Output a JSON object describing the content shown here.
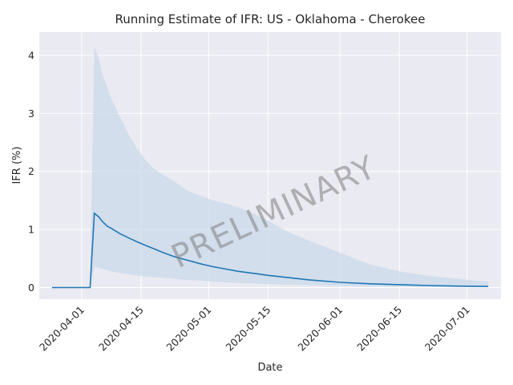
{
  "chart_data": {
    "type": "line",
    "title": "Running Estimate of IFR: US - Oklahoma - Cherokee",
    "xlabel": "Date",
    "ylabel": "IFR (%)",
    "watermark": "PRELIMINARY",
    "x_tick_labels": [
      "2020-04-01",
      "2020-04-15",
      "2020-05-01",
      "2020-05-15",
      "2020-06-01",
      "2020-06-15",
      "2020-07-01"
    ],
    "y_tick_labels": [
      "0",
      "1",
      "2",
      "3",
      "4"
    ],
    "y_ticks": [
      0,
      1,
      2,
      3,
      4
    ],
    "xlim": [
      "2020-03-22",
      "2020-07-09"
    ],
    "ylim": [
      -0.2,
      4.4
    ],
    "grid": true,
    "background": "#eaeaf2",
    "line_color": "#1f77b4",
    "band_color": "#c9d9ea",
    "series": [
      {
        "x": [
          "2020-03-25",
          "2020-04-03",
          "2020-04-04",
          "2020-04-05",
          "2020-04-06",
          "2020-04-07",
          "2020-04-08",
          "2020-04-10",
          "2020-04-12",
          "2020-04-14",
          "2020-04-16",
          "2020-04-18",
          "2020-04-20",
          "2020-04-23",
          "2020-04-26",
          "2020-04-29",
          "2020-05-02",
          "2020-05-05",
          "2020-05-08",
          "2020-05-12",
          "2020-05-15",
          "2020-05-20",
          "2020-05-25",
          "2020-06-01",
          "2020-06-08",
          "2020-06-15",
          "2020-06-22",
          "2020-06-29",
          "2020-07-06"
        ],
        "y": [
          0,
          0,
          1.28,
          1.22,
          1.13,
          1.06,
          1.02,
          0.93,
          0.86,
          0.79,
          0.73,
          0.67,
          0.61,
          0.53,
          0.47,
          0.41,
          0.36,
          0.32,
          0.28,
          0.24,
          0.21,
          0.17,
          0.13,
          0.09,
          0.065,
          0.05,
          0.035,
          0.025,
          0.02
        ],
        "lower": [
          0,
          0,
          0.36,
          0.34,
          0.32,
          0.3,
          0.28,
          0.25,
          0.23,
          0.21,
          0.19,
          0.18,
          0.17,
          0.15,
          0.13,
          0.12,
          0.1,
          0.09,
          0.08,
          0.07,
          0.06,
          0.05,
          0.04,
          0.03,
          0.02,
          0.015,
          0.01,
          0.008,
          0.005
        ],
        "upper": [
          0,
          0,
          4.15,
          3.95,
          3.65,
          3.45,
          3.25,
          2.95,
          2.65,
          2.4,
          2.2,
          2.05,
          1.95,
          1.82,
          1.67,
          1.58,
          1.5,
          1.45,
          1.38,
          1.26,
          1.15,
          0.95,
          0.8,
          0.6,
          0.4,
          0.28,
          0.2,
          0.15,
          0.1
        ]
      }
    ]
  }
}
